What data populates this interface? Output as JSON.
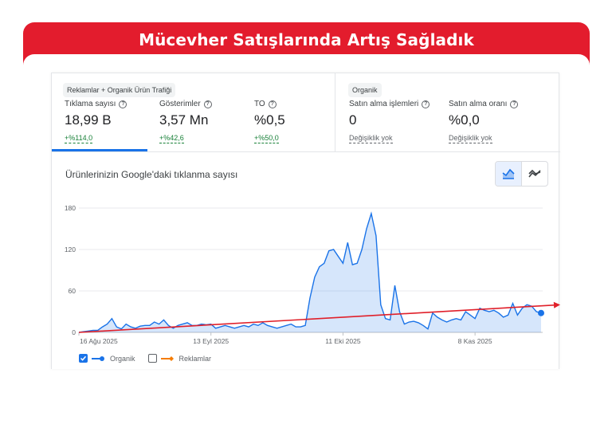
{
  "banner": {
    "title": "Mücevher Satışlarında Artış Sağladık"
  },
  "metrics_left": {
    "label": "Reklamlar + Organik Ürün Trafiği",
    "items": [
      {
        "title": "Tıklama sayısı",
        "value": "18,99 B",
        "change": "+%114,0"
      },
      {
        "title": "Gösterimler",
        "value": "3,57 Mn",
        "change": "+%42,6"
      },
      {
        "title": "TO",
        "value": "%0,5",
        "change": "+%50,0"
      }
    ]
  },
  "metrics_right": {
    "label": "Organik",
    "items": [
      {
        "title": "Satın alma işlemleri",
        "value": "0",
        "change": "Değişiklik yok"
      },
      {
        "title": "Satın alma oranı",
        "value": "%0,0",
        "change": "Değişiklik yok"
      }
    ]
  },
  "chart": {
    "title": "Ürünlerinizin Google'daki tıklanma sayısı"
  },
  "legend": {
    "organic": "Organik",
    "ads": "Reklamlar"
  },
  "colors": {
    "accent": "#1a73e8",
    "brand": "#e31c2d",
    "positive": "#188038",
    "trend": "#e0202a",
    "ads": "#f57c00"
  },
  "chart_data": {
    "type": "area",
    "ylim": [
      0,
      180
    ],
    "yticks": [
      0,
      60,
      120,
      180
    ],
    "xticks": [
      {
        "label": "16 Ağu 2025",
        "index": 0
      },
      {
        "label": "13 Eyl 2025",
        "index": 28
      },
      {
        "label": "11 Eki 2025",
        "index": 56
      },
      {
        "label": "8 Kas 2025",
        "index": 84
      }
    ],
    "series": [
      {
        "name": "Organik",
        "values": [
          0,
          1,
          2,
          3,
          3,
          8,
          12,
          20,
          8,
          5,
          12,
          8,
          6,
          9,
          10,
          10,
          15,
          12,
          18,
          10,
          6,
          10,
          12,
          14,
          10,
          10,
          12,
          11,
          12,
          6,
          8,
          10,
          8,
          6,
          8,
          10,
          8,
          12,
          10,
          14,
          10,
          8,
          6,
          8,
          10,
          12,
          8,
          8,
          10,
          50,
          80,
          95,
          100,
          118,
          120,
          110,
          100,
          130,
          98,
          100,
          120,
          150,
          172,
          140,
          40,
          20,
          18,
          68,
          30,
          12,
          15,
          16,
          14,
          10,
          5,
          28,
          22,
          18,
          15,
          18,
          20,
          18,
          30,
          25,
          20,
          35,
          32,
          30,
          32,
          28,
          22,
          25,
          42,
          25,
          35,
          40,
          38,
          30,
          28
        ]
      }
    ],
    "trend": {
      "start": 0,
      "end": 40
    }
  }
}
